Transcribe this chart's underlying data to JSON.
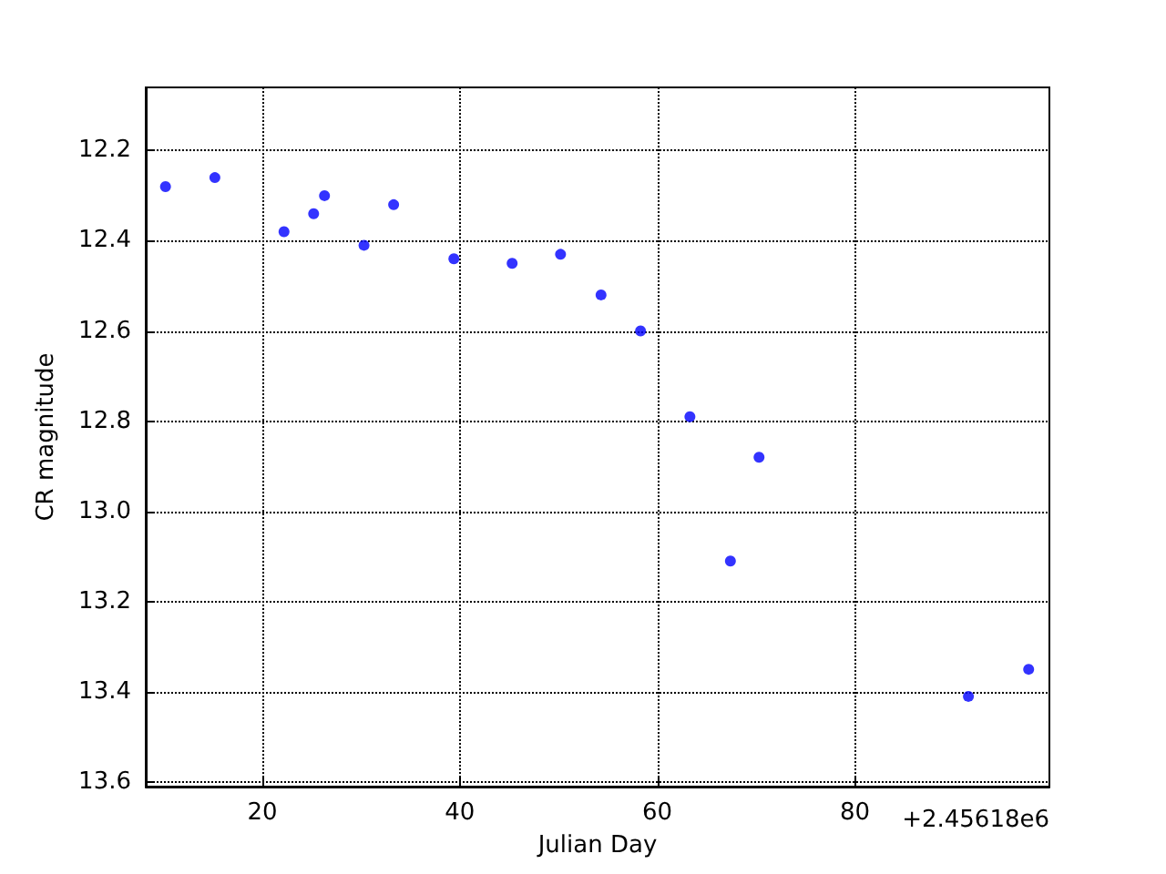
{
  "chart_data": {
    "type": "scatter",
    "xlabel": "Julian Day",
    "ylabel": "CR magnitude",
    "annotations": [
      "+2.45618e6"
    ],
    "x": [
      10.2,
      15.2,
      22.2,
      25.2,
      26.3,
      30.3,
      33.3,
      39.4,
      45.3,
      50.2,
      54.3,
      58.3,
      63.3,
      67.4,
      70.3,
      91.5,
      97.6
    ],
    "series": [
      {
        "color": "#0000ff",
        "values": [
          12.28,
          12.26,
          12.38,
          12.34,
          12.3,
          12.41,
          12.32,
          12.44,
          12.45,
          12.43,
          12.52,
          12.6,
          12.79,
          13.11,
          12.88,
          13.41,
          13.35
        ]
      }
    ],
    "xlim": [
      8.2,
      99.7
    ],
    "ylim": [
      13.61,
      12.06
    ],
    "xticks": [
      20,
      40,
      60,
      80
    ],
    "yticks": [
      12.2,
      12.4,
      12.6,
      12.8,
      {
        "value": 13.0,
        "label": "13.0"
      },
      13.2,
      13.4,
      13.6
    ],
    "grid": true,
    "marker": "circle"
  }
}
